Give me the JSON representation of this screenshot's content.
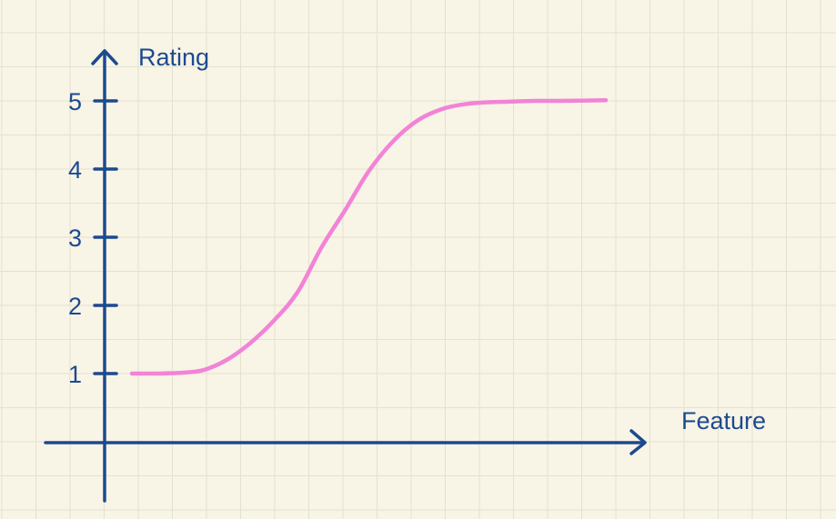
{
  "chart_data": {
    "type": "line",
    "xlabel": "Feature",
    "ylabel": "Rating",
    "y_ticks": [
      "1",
      "2",
      "3",
      "4",
      "5"
    ],
    "ylim": [
      1,
      5
    ],
    "grid": true,
    "series": [
      {
        "values": [
          {
            "x": 0.0,
            "y": 1.0
          },
          {
            "x": 0.05,
            "y": 1.0
          },
          {
            "x": 0.1,
            "y": 1.01
          },
          {
            "x": 0.15,
            "y": 1.05
          },
          {
            "x": 0.2,
            "y": 1.2
          },
          {
            "x": 0.25,
            "y": 1.45
          },
          {
            "x": 0.3,
            "y": 1.78
          },
          {
            "x": 0.35,
            "y": 2.2
          },
          {
            "x": 0.4,
            "y": 2.85
          },
          {
            "x": 0.45,
            "y": 3.4
          },
          {
            "x": 0.5,
            "y": 3.97
          },
          {
            "x": 0.55,
            "y": 4.4
          },
          {
            "x": 0.6,
            "y": 4.7
          },
          {
            "x": 0.65,
            "y": 4.87
          },
          {
            "x": 0.7,
            "y": 4.95
          },
          {
            "x": 0.75,
            "y": 4.98
          },
          {
            "x": 0.8,
            "y": 4.99
          },
          {
            "x": 0.85,
            "y": 5.0
          },
          {
            "x": 0.9,
            "y": 5.0
          },
          {
            "x": 1.0,
            "y": 5.01
          }
        ]
      }
    ],
    "colors": {
      "background": "#f8f4e6",
      "grid": "#e3e2cf",
      "axis": "#1c4a8f",
      "curve": "#f283d6"
    }
  }
}
